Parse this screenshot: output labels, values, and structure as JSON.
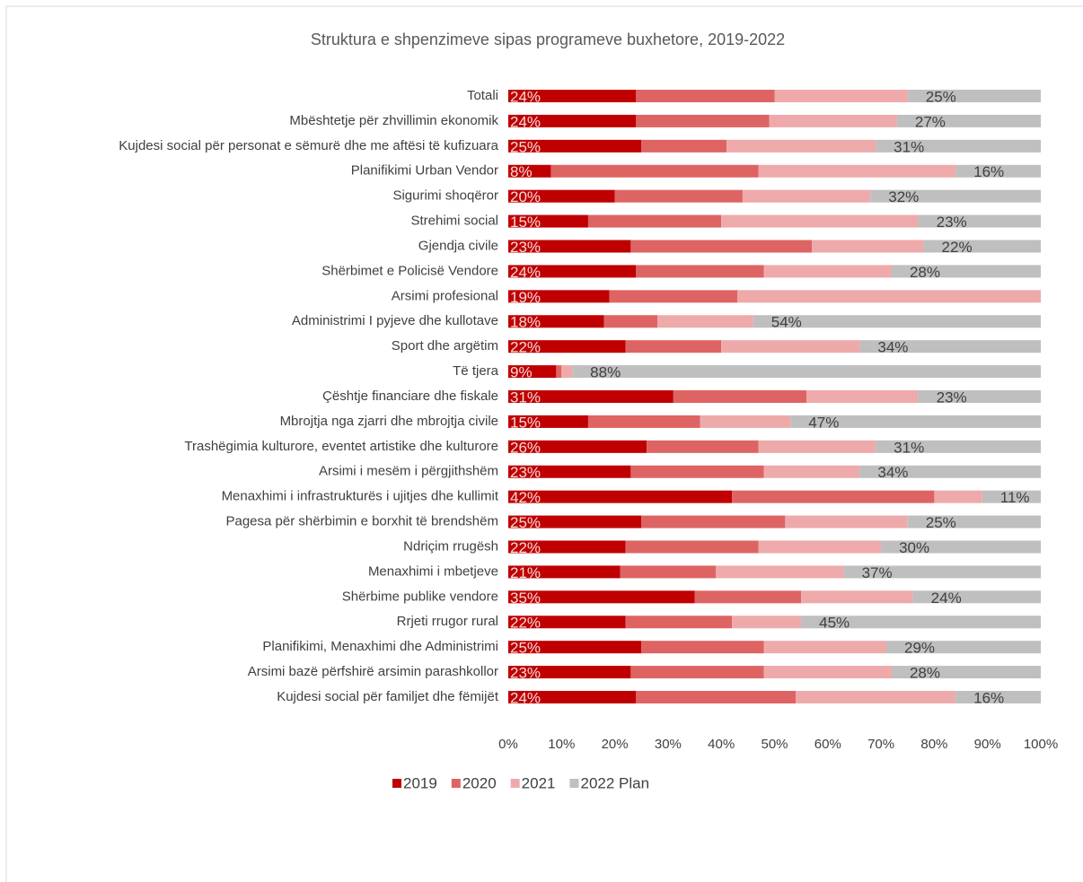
{
  "chart_data": {
    "type": "stacked_bar_horizontal",
    "title": "Struktura e shpenzimeve sipas programeve buxhetore, 2019-2022",
    "categories": [
      "Totali",
      "Mbështetje për zhvillimin ekonomik",
      "Kujdesi social për personat e sëmurë dhe me aftësi të kufizuara",
      "Planifikimi Urban Vendor",
      "Sigurimi shoqëror",
      "Strehimi social",
      "Gjendja civile",
      "Shërbimet e Policisë Vendore",
      "Arsimi profesional",
      "Administrimi I pyjeve dhe kullotave",
      "Sport dhe argëtim",
      "Të tjera",
      "Çështje financiare dhe fiskale",
      "Mbrojtja nga zjarri dhe mbrojtja civile",
      "Trashëgimia kulturore, eventet artistike dhe kulturore",
      "Arsimi i mesëm i përgjithshëm",
      "Menaxhimi i infrastrukturës i ujitjes dhe kullimit",
      "Pagesa për shërbimin e borxhit të brendshëm",
      "Ndriçim rrugësh",
      "Menaxhimi i mbetjeve",
      "Shërbime publike vendore",
      "Rrjeti rrugor rural",
      "Planifikimi, Menaxhimi dhe Administrimi",
      "Arsimi bazë përfshirë arsimin parashkollor",
      "Kujdesi social për familjet dhe fëmijët"
    ],
    "series": [
      {
        "name": "2019",
        "color": "#c00000",
        "values": [
          24,
          24,
          25,
          8,
          20,
          15,
          23,
          24,
          19,
          18,
          22,
          9,
          31,
          15,
          26,
          23,
          42,
          25,
          22,
          21,
          35,
          22,
          25,
          23,
          24
        ],
        "value_labels": [
          "24%",
          "24%",
          "25%",
          "8%",
          "20%",
          "15%",
          "23%",
          "24%",
          "19%",
          "18%",
          "22%",
          "9%",
          "31%",
          "15%",
          "26%",
          "23%",
          "42%",
          "25%",
          "22%",
          "21%",
          "35%",
          "22%",
          "25%",
          "23%",
          "24%"
        ]
      },
      {
        "name": "2020",
        "color": "#de6464",
        "values": [
          26,
          25,
          16,
          39,
          24,
          25,
          34,
          24,
          24,
          10,
          18,
          1,
          25,
          21,
          21,
          25,
          38,
          27,
          25,
          18,
          20,
          20,
          23,
          25,
          30
        ]
      },
      {
        "name": "2021",
        "color": "#eeaaaa",
        "values": [
          25,
          24,
          28,
          37,
          24,
          37,
          21,
          24,
          57,
          18,
          26,
          2,
          21,
          17,
          22,
          18,
          9,
          23,
          23,
          24,
          21,
          13,
          23,
          24,
          30
        ]
      },
      {
        "name": "2022 Plan",
        "color": "#bfbfbf",
        "values": [
          25,
          27,
          31,
          16,
          32,
          23,
          22,
          28,
          0,
          54,
          34,
          88,
          23,
          47,
          31,
          34,
          11,
          25,
          30,
          37,
          24,
          45,
          29,
          28,
          16
        ],
        "value_labels": [
          "25%",
          "27%",
          "31%",
          "16%",
          "32%",
          "23%",
          "22%",
          "28%",
          null,
          "54%",
          "34%",
          "88%",
          "23%",
          "47%",
          "31%",
          "34%",
          "11%",
          "25%",
          "30%",
          "37%",
          "24%",
          "45%",
          "29%",
          "28%",
          "16%"
        ]
      }
    ],
    "xlim": [
      0,
      100
    ],
    "xticks": [
      {
        "value": 0,
        "label": "0%"
      },
      {
        "value": 10,
        "label": "10%"
      },
      {
        "value": 20,
        "label": "20%"
      },
      {
        "value": 30,
        "label": "30%"
      },
      {
        "value": 40,
        "label": "40%"
      },
      {
        "value": 50,
        "label": "50%"
      },
      {
        "value": 60,
        "label": "60%"
      },
      {
        "value": 70,
        "label": "70%"
      },
      {
        "value": 80,
        "label": "80%"
      },
      {
        "value": 90,
        "label": "90%"
      },
      {
        "value": 100,
        "label": "100%"
      }
    ],
    "legend": "bottom"
  }
}
